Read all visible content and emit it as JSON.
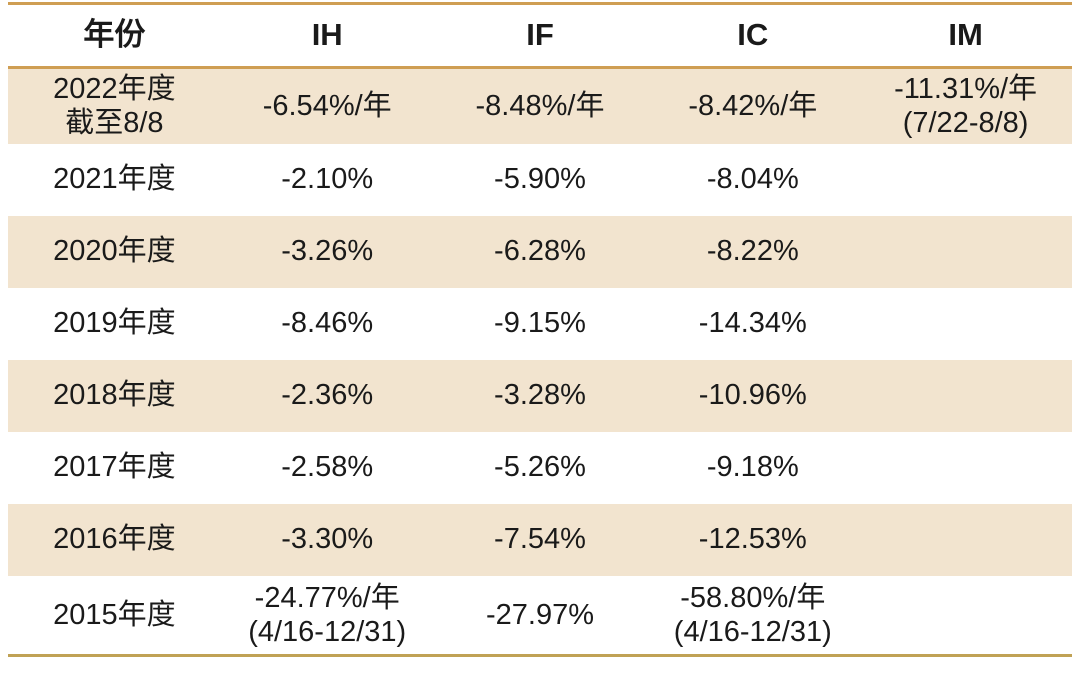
{
  "colors": {
    "stripe_beige": "#f2e4cf",
    "rule_gold_top": "#cf9e53",
    "rule_gold_bottom": "#c0a255",
    "text": "#1a1a1a",
    "background": "#ffffff"
  },
  "chart_data": {
    "type": "table",
    "columns": [
      "年份",
      "IH",
      "IF",
      "IC",
      "IM"
    ],
    "rows": [
      [
        "2022年度\n截至8/8",
        "-6.54%/年",
        "-8.48%/年",
        "-8.42%/年",
        "-11.31%/年\n(7/22-8/8)"
      ],
      [
        "2021年度",
        "-2.10%",
        "-5.90%",
        "-8.04%",
        ""
      ],
      [
        "2020年度",
        "-3.26%",
        "-6.28%",
        "-8.22%",
        ""
      ],
      [
        "2019年度",
        "-8.46%",
        "-9.15%",
        "-14.34%",
        ""
      ],
      [
        "2018年度",
        "-2.36%",
        "-3.28%",
        "-10.96%",
        ""
      ],
      [
        "2017年度",
        "-2.58%",
        "-5.26%",
        "-9.18%",
        ""
      ],
      [
        "2016年度",
        "-3.30%",
        "-7.54%",
        "-12.53%",
        ""
      ],
      [
        "2015年度",
        "-24.77%/年\n(4/16-12/31)",
        "-27.97%",
        "-58.80%/年\n(4/16-12/31)",
        ""
      ]
    ],
    "layout": {
      "striped": true,
      "stripe_rows": [
        "2022",
        "2020",
        "2018",
        "2016"
      ],
      "grid": "horizontal rules top, below header, and bottom only",
      "alignment": "center"
    }
  }
}
